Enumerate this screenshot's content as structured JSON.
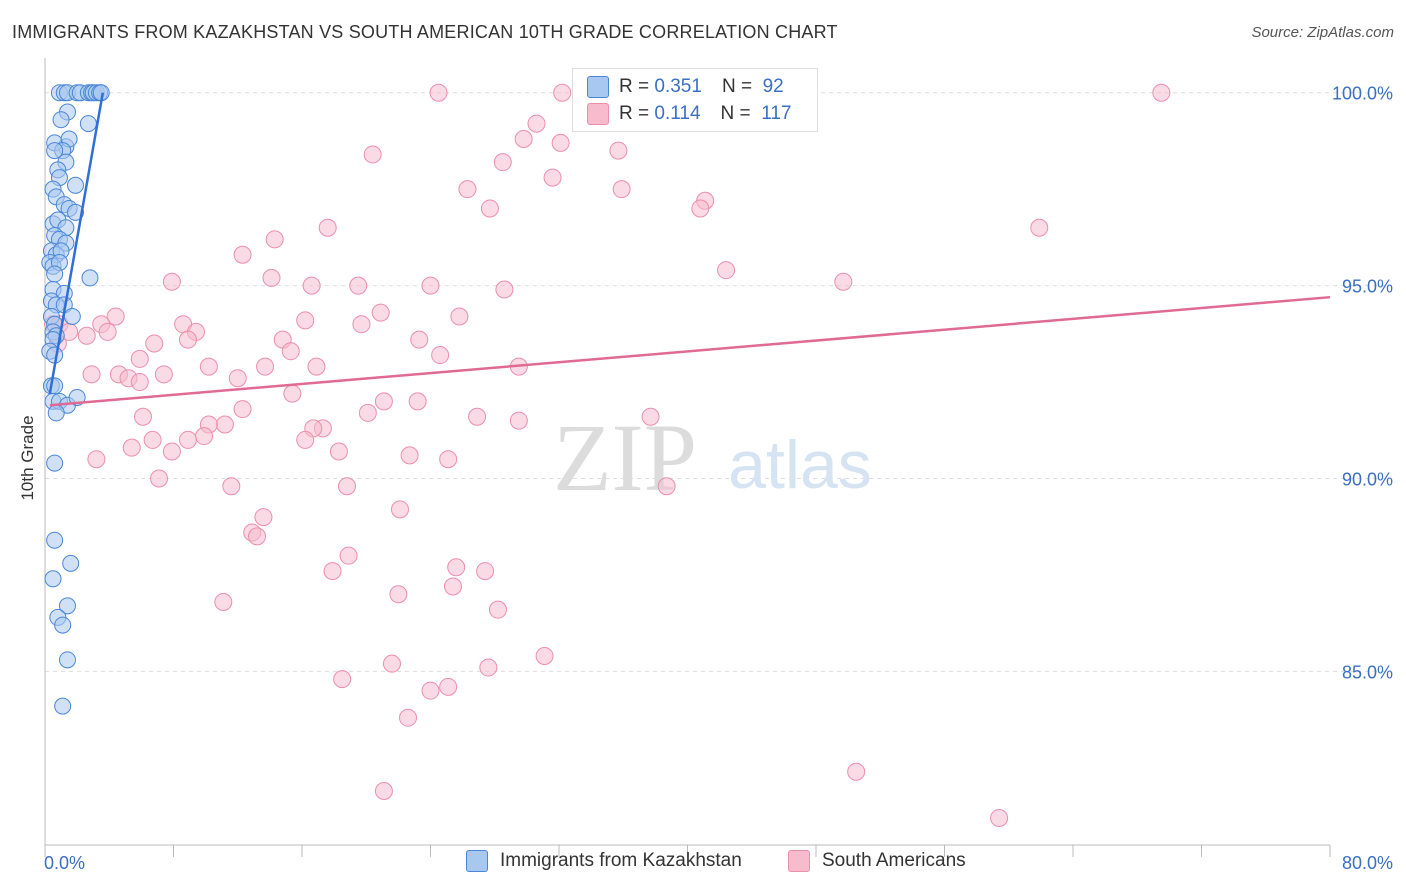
{
  "title": "IMMIGRANTS FROM KAZAKHSTAN VS SOUTH AMERICAN 10TH GRADE CORRELATION CHART",
  "source": "Source: ZipAtlas.com",
  "watermark_zip": "ZIP",
  "watermark_atlas": "atlas",
  "legend": {
    "r_label": "R =",
    "n_label": "N =",
    "series1": {
      "r": "0.351",
      "n": "92"
    },
    "series2": {
      "r": "0.114",
      "n": "117"
    }
  },
  "colors": {
    "blue_fill": "#a9c8f0",
    "blue_stroke": "#4a86d8",
    "blue_line": "#2f6fd6",
    "pink_fill": "#f6bccd",
    "pink_stroke": "#ec8fab",
    "pink_line": "#e06a94",
    "axis_label": "#3a6fc4",
    "grid": "#dddddd"
  },
  "chart_data": {
    "type": "scatter",
    "ylabel": "10th Grade",
    "xlim": [
      0,
      80
    ],
    "ylim": [
      80.5,
      100.9
    ],
    "x_tick_labels": [
      "0.0%",
      "80.0%"
    ],
    "y_ticks": [
      85,
      90,
      95,
      100
    ],
    "y_tick_labels": [
      "85.0%",
      "90.0%",
      "95.0%",
      "100.0%"
    ],
    "grid": "horizontal dashed",
    "series": [
      {
        "name": "Immigrants from Kazakhstan",
        "r": 0.351,
        "n": 92,
        "trend": [
          [
            0.3,
            92.2
          ],
          [
            3.6,
            100.0
          ]
        ],
        "points": [
          [
            0.9,
            100
          ],
          [
            1.2,
            100
          ],
          [
            1.4,
            100
          ],
          [
            2.0,
            100
          ],
          [
            2.2,
            100
          ],
          [
            2.7,
            100
          ],
          [
            2.9,
            100
          ],
          [
            3.0,
            100
          ],
          [
            3.2,
            100
          ],
          [
            3.4,
            100
          ],
          [
            3.5,
            100
          ],
          [
            1.4,
            99.5
          ],
          [
            1.0,
            99.3
          ],
          [
            2.7,
            99.2
          ],
          [
            1.3,
            98.6
          ],
          [
            0.6,
            98.7
          ],
          [
            1.5,
            98.8
          ],
          [
            1.1,
            98.5
          ],
          [
            1.3,
            98.2
          ],
          [
            0.6,
            98.5
          ],
          [
            0.8,
            98.0
          ],
          [
            0.9,
            97.8
          ],
          [
            1.9,
            97.6
          ],
          [
            0.5,
            97.5
          ],
          [
            0.7,
            97.3
          ],
          [
            1.2,
            97.1
          ],
          [
            1.5,
            97.0
          ],
          [
            1.9,
            96.9
          ],
          [
            0.5,
            96.6
          ],
          [
            0.8,
            96.7
          ],
          [
            1.3,
            96.5
          ],
          [
            0.6,
            96.3
          ],
          [
            0.9,
            96.2
          ],
          [
            1.3,
            96.1
          ],
          [
            0.4,
            95.9
          ],
          [
            0.7,
            95.8
          ],
          [
            1.0,
            95.9
          ],
          [
            0.3,
            95.6
          ],
          [
            0.5,
            95.5
          ],
          [
            0.9,
            95.6
          ],
          [
            0.6,
            95.3
          ],
          [
            2.8,
            95.2
          ],
          [
            0.5,
            94.9
          ],
          [
            1.2,
            94.8
          ],
          [
            0.4,
            94.6
          ],
          [
            0.7,
            94.5
          ],
          [
            1.2,
            94.5
          ],
          [
            0.4,
            94.2
          ],
          [
            1.7,
            94.2
          ],
          [
            0.6,
            94.0
          ],
          [
            0.5,
            93.8
          ],
          [
            0.7,
            93.7
          ],
          [
            0.5,
            93.6
          ],
          [
            0.3,
            93.3
          ],
          [
            0.6,
            93.2
          ],
          [
            0.4,
            92.4
          ],
          [
            0.6,
            92.4
          ],
          [
            0.5,
            92.0
          ],
          [
            0.9,
            92.0
          ],
          [
            1.4,
            91.9
          ],
          [
            2.0,
            92.1
          ],
          [
            0.7,
            91.7
          ],
          [
            0.6,
            90.4
          ],
          [
            0.6,
            88.4
          ],
          [
            1.6,
            87.8
          ],
          [
            0.5,
            87.4
          ],
          [
            1.4,
            86.7
          ],
          [
            0.8,
            86.4
          ],
          [
            1.1,
            86.2
          ],
          [
            1.4,
            85.3
          ],
          [
            1.1,
            84.1
          ]
        ]
      },
      {
        "name": "South Americans",
        "r": 0.114,
        "n": 117,
        "trend": [
          [
            0.3,
            91.9
          ],
          [
            80.0,
            94.7
          ]
        ],
        "points": [
          [
            24.5,
            100
          ],
          [
            32.2,
            100
          ],
          [
            38.2,
            99.9
          ],
          [
            69.5,
            100
          ],
          [
            30.6,
            99.2
          ],
          [
            29.8,
            98.8
          ],
          [
            32.1,
            98.7
          ],
          [
            35.7,
            98.5
          ],
          [
            20.4,
            98.4
          ],
          [
            28.5,
            98.2
          ],
          [
            31.6,
            97.8
          ],
          [
            35.9,
            97.5
          ],
          [
            26.3,
            97.5
          ],
          [
            41.1,
            97.2
          ],
          [
            27.7,
            97.0
          ],
          [
            40.8,
            97.0
          ],
          [
            61.9,
            96.5
          ],
          [
            17.6,
            96.5
          ],
          [
            14.3,
            96.2
          ],
          [
            12.3,
            95.8
          ],
          [
            42.4,
            95.4
          ],
          [
            49.7,
            95.1
          ],
          [
            14.1,
            95.2
          ],
          [
            7.9,
            95.1
          ],
          [
            16.6,
            95.0
          ],
          [
            19.5,
            95.0
          ],
          [
            24.0,
            95.0
          ],
          [
            28.6,
            94.9
          ],
          [
            20.9,
            94.3
          ],
          [
            16.2,
            94.1
          ],
          [
            25.8,
            94.2
          ],
          [
            19.7,
            94.0
          ],
          [
            8.6,
            94.0
          ],
          [
            4.4,
            94.2
          ],
          [
            3.5,
            94.0
          ],
          [
            9.4,
            93.8
          ],
          [
            3.9,
            93.8
          ],
          [
            0.5,
            94.0
          ],
          [
            0.9,
            94.0
          ],
          [
            1.5,
            93.8
          ],
          [
            0.8,
            93.5
          ],
          [
            2.6,
            93.7
          ],
          [
            6.8,
            93.5
          ],
          [
            8.9,
            93.6
          ],
          [
            14.8,
            93.6
          ],
          [
            23.3,
            93.6
          ],
          [
            15.3,
            93.3
          ],
          [
            24.6,
            93.2
          ],
          [
            5.9,
            93.1
          ],
          [
            10.2,
            92.9
          ],
          [
            13.7,
            92.9
          ],
          [
            16.9,
            92.9
          ],
          [
            29.5,
            92.9
          ],
          [
            4.6,
            92.7
          ],
          [
            5.2,
            92.6
          ],
          [
            7.4,
            92.7
          ],
          [
            12.0,
            92.6
          ],
          [
            2.9,
            92.7
          ],
          [
            5.9,
            92.5
          ],
          [
            15.4,
            92.2
          ],
          [
            21.1,
            92.0
          ],
          [
            23.2,
            92.0
          ],
          [
            20.1,
            91.7
          ],
          [
            12.3,
            91.8
          ],
          [
            6.1,
            91.6
          ],
          [
            29.5,
            91.5
          ],
          [
            26.9,
            91.6
          ],
          [
            37.7,
            91.6
          ],
          [
            11.2,
            91.4
          ],
          [
            10.2,
            91.4
          ],
          [
            17.3,
            91.3
          ],
          [
            16.7,
            91.3
          ],
          [
            9.9,
            91.1
          ],
          [
            8.9,
            91.0
          ],
          [
            6.7,
            91.0
          ],
          [
            16.2,
            91.0
          ],
          [
            5.4,
            90.8
          ],
          [
            7.9,
            90.7
          ],
          [
            18.3,
            90.7
          ],
          [
            22.7,
            90.6
          ],
          [
            25.1,
            90.5
          ],
          [
            3.2,
            90.5
          ],
          [
            7.1,
            90.0
          ],
          [
            38.7,
            89.8
          ],
          [
            11.6,
            89.8
          ],
          [
            18.8,
            89.8
          ],
          [
            22.1,
            89.2
          ],
          [
            13.6,
            89.0
          ],
          [
            12.9,
            88.6
          ],
          [
            13.2,
            88.5
          ],
          [
            18.9,
            88.0
          ],
          [
            17.9,
            87.6
          ],
          [
            25.6,
            87.7
          ],
          [
            27.4,
            87.6
          ],
          [
            25.4,
            87.2
          ],
          [
            22.0,
            87.0
          ],
          [
            11.1,
            86.8
          ],
          [
            28.2,
            86.6
          ],
          [
            31.1,
            85.4
          ],
          [
            21.6,
            85.2
          ],
          [
            27.6,
            85.1
          ],
          [
            18.5,
            84.8
          ],
          [
            24.0,
            84.5
          ],
          [
            25.1,
            84.6
          ],
          [
            22.6,
            83.8
          ],
          [
            50.5,
            82.4
          ],
          [
            21.1,
            81.9
          ],
          [
            59.4,
            81.2
          ]
        ]
      }
    ]
  },
  "bottom_legend": {
    "series1": "Immigrants from Kazakhstan",
    "series2": "South Americans"
  }
}
